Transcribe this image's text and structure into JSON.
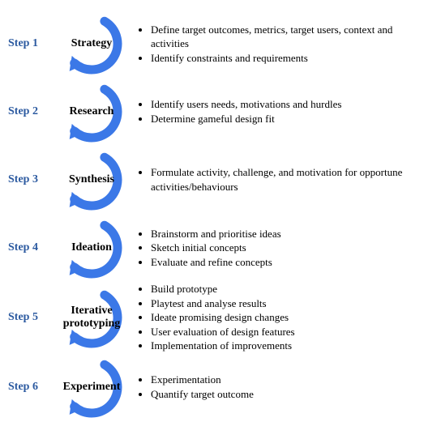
{
  "colors": {
    "step_label": "#2c5aa0",
    "arc": "#3b78e7",
    "text": "#000000",
    "background": "#ffffff"
  },
  "arc": {
    "stroke_width": 11,
    "width": 90,
    "height": 84
  },
  "steps": [
    {
      "label": "Step 1",
      "title": "Strategy",
      "bullets": [
        "Define target outcomes, metrics, target users, context and activities",
        "Identify constraints and requirements"
      ]
    },
    {
      "label": "Step 2",
      "title": "Research",
      "bullets": [
        "Identify users needs, motivations and hurdles",
        "Determine gameful design fit"
      ]
    },
    {
      "label": "Step 3",
      "title": "Synthesis",
      "bullets": [
        "Formulate activity, challenge, and motivation for opportune activities/behaviours"
      ]
    },
    {
      "label": "Step 4",
      "title": "Ideation",
      "bullets": [
        "Brainstorm and prioritise ideas",
        "Sketch initial concepts",
        "Evaluate and refine concepts"
      ]
    },
    {
      "label": "Step 5",
      "title": "Iterative prototyping",
      "bullets": [
        "Build prototype",
        "Playtest and analyse results",
        "Ideate promising design changes",
        "User evaluation of design features",
        "Implementation of improvements"
      ]
    },
    {
      "label": "Step 6",
      "title": "Experiment",
      "bullets": [
        "Experimentation",
        "Quantify target outcome"
      ]
    }
  ]
}
